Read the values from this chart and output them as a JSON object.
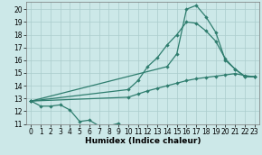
{
  "line1_x": [
    0,
    1,
    2,
    3,
    4,
    5,
    6,
    7,
    8,
    9
  ],
  "line1_y": [
    12.8,
    12.4,
    12.4,
    12.5,
    12.1,
    11.2,
    11.3,
    10.85,
    10.85,
    11.05
  ],
  "line2_x": [
    0,
    10,
    11,
    12,
    13,
    14,
    15,
    16,
    17,
    18,
    19,
    20,
    21,
    22,
    23
  ],
  "line2_y": [
    12.8,
    13.1,
    13.35,
    13.6,
    13.8,
    14.0,
    14.2,
    14.4,
    14.55,
    14.65,
    14.75,
    14.85,
    14.95,
    14.8,
    14.7
  ],
  "line3_x": [
    0,
    10,
    11,
    12,
    13,
    14,
    15,
    16,
    17,
    18,
    19,
    20,
    21,
    22,
    23
  ],
  "line3_y": [
    12.8,
    13.7,
    14.4,
    15.5,
    16.2,
    17.2,
    18.0,
    19.0,
    18.9,
    18.3,
    17.5,
    16.1,
    15.3,
    14.75,
    14.7
  ],
  "line4_x": [
    0,
    14,
    15,
    16,
    17,
    18,
    19,
    20,
    21,
    22,
    23
  ],
  "line4_y": [
    12.8,
    15.5,
    16.5,
    20.0,
    20.3,
    19.4,
    18.2,
    16.0,
    15.3,
    14.7,
    14.7
  ],
  "color": "#2e7d6e",
  "bg_color": "#cce8e8",
  "grid_color": "#aacccc",
  "xlabel": "Humidex (Indice chaleur)",
  "xlim": [
    -0.5,
    23.5
  ],
  "ylim": [
    11.0,
    20.6
  ],
  "yticks": [
    11,
    12,
    13,
    14,
    15,
    16,
    17,
    18,
    19,
    20
  ],
  "xticks": [
    0,
    1,
    2,
    3,
    4,
    5,
    6,
    7,
    8,
    9,
    10,
    11,
    12,
    13,
    14,
    15,
    16,
    17,
    18,
    19,
    20,
    21,
    22,
    23
  ],
  "markersize": 2.2,
  "linewidth": 0.9,
  "xlabel_fontsize": 6.5,
  "tick_fontsize": 5.5
}
